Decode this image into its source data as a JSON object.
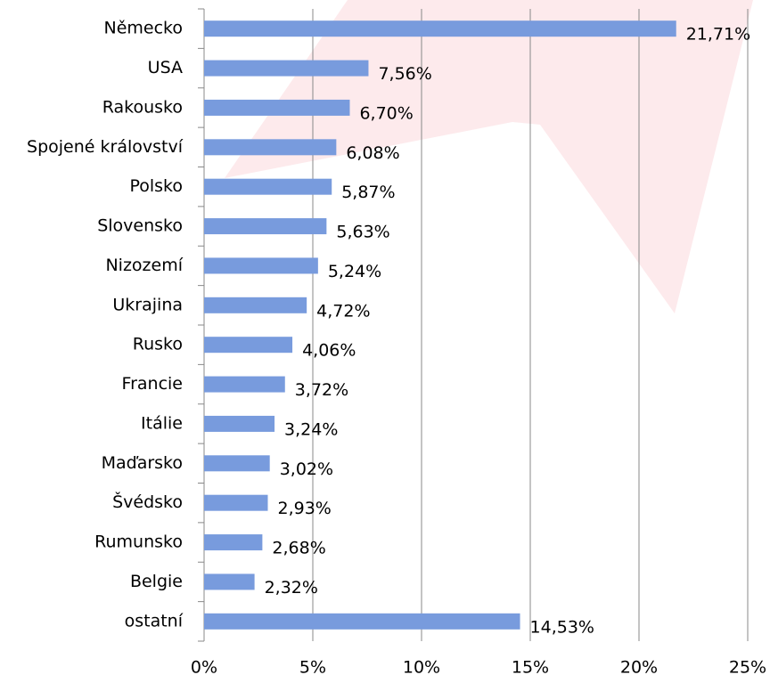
{
  "chart_data": {
    "type": "bar",
    "orientation": "horizontal",
    "categories": [
      "Německo",
      "USA",
      "Rakousko",
      "Spojené království",
      "Polsko",
      "Slovensko",
      "Nizozemí",
      "Ukrajina",
      "Rusko",
      "Francie",
      "Itálie",
      "Maďarsko",
      "Švédsko",
      "Rumunsko",
      "Belgie",
      "ostatní"
    ],
    "values": [
      21.71,
      7.56,
      6.7,
      6.08,
      5.87,
      5.63,
      5.24,
      4.72,
      4.06,
      3.72,
      3.24,
      3.02,
      2.93,
      2.68,
      2.32,
      14.53
    ],
    "value_labels": [
      "21,71%",
      "7,56%",
      "6,70%",
      "6,08%",
      "5,87%",
      "5,63%",
      "5,24%",
      "4,72%",
      "4,06%",
      "3,72%",
      "3,24%",
      "3,02%",
      "2,93%",
      "2,68%",
      "2,32%",
      "14,53%"
    ],
    "color": "#789bdd",
    "xlim": [
      0,
      25
    ],
    "xticks": [
      {
        "value": 0,
        "label": "0%"
      },
      {
        "value": 5,
        "label": "5%"
      },
      {
        "value": 10,
        "label": "10%"
      },
      {
        "value": 15,
        "label": "15%"
      },
      {
        "value": 20,
        "label": "20%"
      },
      {
        "value": 25,
        "label": "25%"
      }
    ],
    "grid": true
  }
}
